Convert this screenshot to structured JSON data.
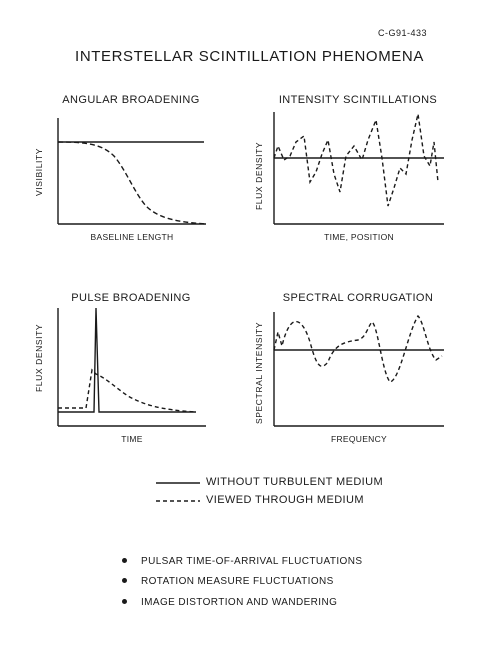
{
  "doc_code": "C-G91-433",
  "title": "INTERSTELLAR SCINTILLATION PHENOMENA",
  "panels": {
    "angular": {
      "title": "ANGULAR BROADENING",
      "xlabel": "BASELINE LENGTH",
      "ylabel": "VISIBILITY"
    },
    "intensity": {
      "title": "INTENSITY SCINTILLATIONS",
      "xlabel": "TIME, POSITION",
      "ylabel": "FLUX DENSITY"
    },
    "pulse": {
      "title": "PULSE BROADENING",
      "xlabel": "TIME",
      "ylabel": "FLUX DENSITY"
    },
    "spectral": {
      "title": "SPECTRAL CORRUGATION",
      "xlabel": "FREQUENCY",
      "ylabel": "SPECTRAL INTENSITY"
    }
  },
  "legend": {
    "solid": "WITHOUT TURBULENT MEDIUM",
    "dashed": "VIEWED THROUGH MEDIUM"
  },
  "bullets": [
    "PULSAR TIME-OF-ARRIVAL FLUCTUATIONS",
    "ROTATION MEASURE FLUCTUATIONS",
    "IMAGE DISTORTION AND WANDERING"
  ]
}
